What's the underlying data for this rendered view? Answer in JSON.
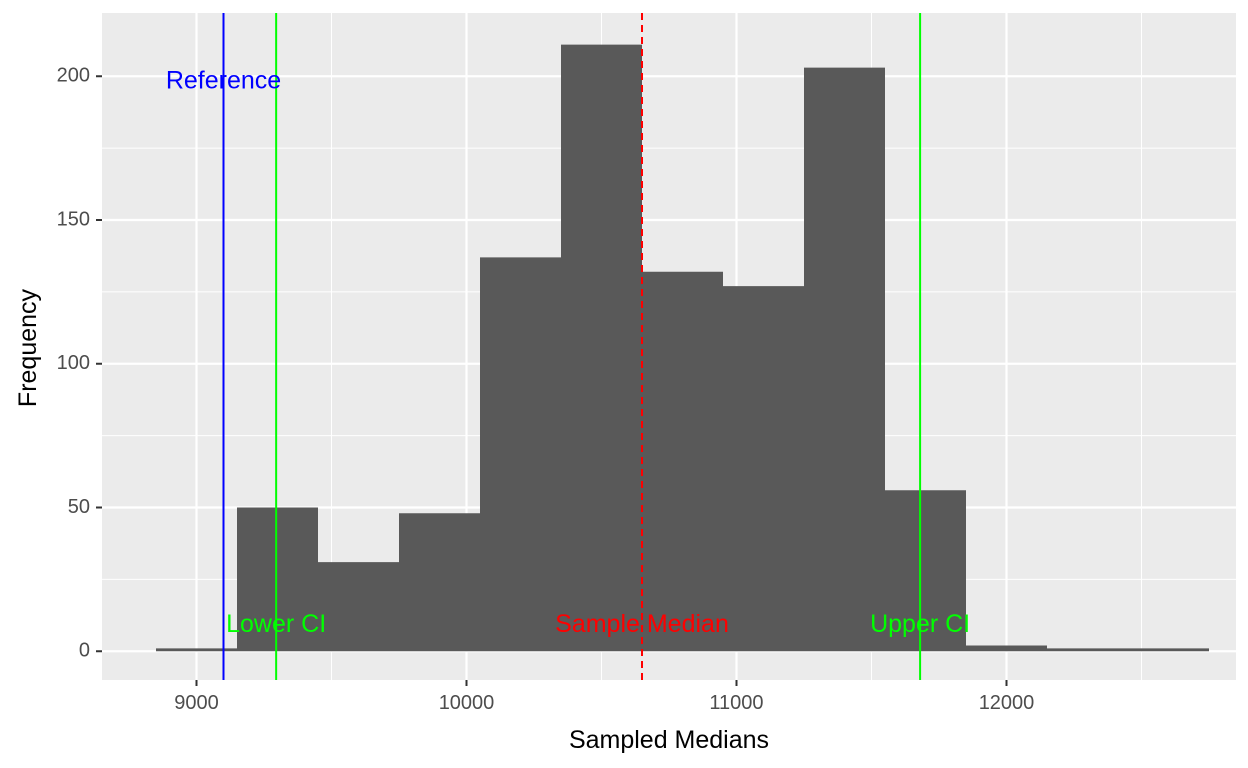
{
  "chart_data": {
    "type": "histogram",
    "xlabel": "Sampled Medians",
    "ylabel": "Frequency",
    "xlim": [
      8650,
      12850
    ],
    "ylim": [
      -10,
      222
    ],
    "x_ticks": [
      9000,
      10000,
      11000,
      12000
    ],
    "y_ticks": [
      0,
      50,
      100,
      150,
      200
    ],
    "x_tick_labels": [
      "9000",
      "10000",
      "11000",
      "12000"
    ],
    "y_tick_labels": [
      "0",
      "50",
      "100",
      "150",
      "200"
    ],
    "grid": true,
    "bins": [
      {
        "start": 8850,
        "end": 9150,
        "count": 1
      },
      {
        "start": 9150,
        "end": 9450,
        "count": 50
      },
      {
        "start": 9450,
        "end": 9750,
        "count": 31
      },
      {
        "start": 9750,
        "end": 10050,
        "count": 48
      },
      {
        "start": 10050,
        "end": 10350,
        "count": 137
      },
      {
        "start": 10350,
        "end": 10650,
        "count": 211
      },
      {
        "start": 10650,
        "end": 10950,
        "count": 132
      },
      {
        "start": 10950,
        "end": 11250,
        "count": 127
      },
      {
        "start": 11250,
        "end": 11550,
        "count": 203
      },
      {
        "start": 11550,
        "end": 11850,
        "count": 56
      },
      {
        "start": 11850,
        "end": 12150,
        "count": 2
      },
      {
        "start": 12150,
        "end": 12450,
        "count": 1
      },
      {
        "start": 12450,
        "end": 12750,
        "count": 1
      }
    ],
    "reference_lines": [
      {
        "label": "Reference",
        "x": 9100,
        "color": "#0000ff",
        "style": "solid",
        "label_y": 198
      },
      {
        "label": "Lower CI",
        "x": 9295,
        "color": "#00ff00",
        "style": "solid",
        "label_y": 9
      },
      {
        "label": "Sample Median",
        "x": 10650,
        "color": "#ff0000",
        "style": "dashed",
        "label_y": 9
      },
      {
        "label": "Upper CI",
        "x": 11680,
        "color": "#00ff00",
        "style": "solid",
        "label_y": 9
      }
    ],
    "colors": {
      "panel_background": "#ebebeb",
      "grid_major": "#ffffff",
      "bar_fill": "#595959"
    }
  }
}
